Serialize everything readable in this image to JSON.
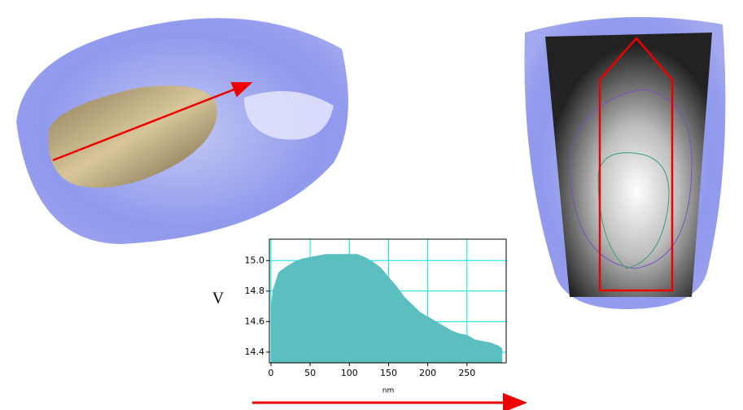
{
  "chart_data": {
    "type": "area",
    "ylabel": "V",
    "xlabel": "nm",
    "color": "#5bbfbf",
    "grid": true,
    "grid_color": "#00e5ee",
    "x": [
      0,
      3,
      10,
      20,
      30,
      40,
      50,
      60,
      70,
      80,
      90,
      100,
      110,
      120,
      130,
      140,
      150,
      160,
      170,
      180,
      190,
      200,
      210,
      220,
      230,
      240,
      250,
      260,
      270,
      280,
      290,
      295
    ],
    "values": [
      14.68,
      14.81,
      14.92,
      14.96,
      14.99,
      15.01,
      15.02,
      15.03,
      15.04,
      15.04,
      15.04,
      15.04,
      15.04,
      15.02,
      14.99,
      14.95,
      14.89,
      14.83,
      14.76,
      14.71,
      14.66,
      14.63,
      14.6,
      14.57,
      14.54,
      14.52,
      14.51,
      14.48,
      14.47,
      14.46,
      14.44,
      14.42
    ],
    "xlim": [
      -2,
      300
    ],
    "xticks": [
      0,
      50,
      100,
      150,
      200,
      250
    ],
    "ylim": [
      14.33,
      15.14
    ],
    "yticks": [
      14.4,
      14.6,
      14.8,
      {
        "value": 15.0,
        "label": "15.0"
      }
    ]
  }
}
